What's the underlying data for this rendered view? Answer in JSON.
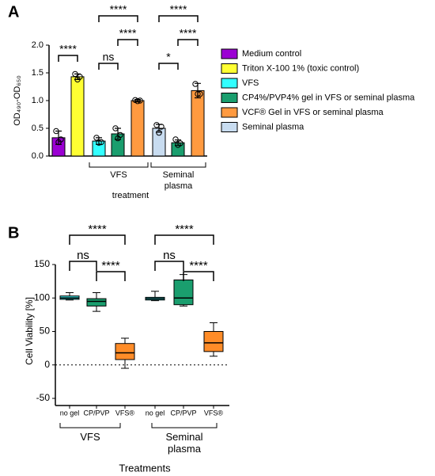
{
  "chart_data": [
    {
      "type": "bar",
      "panel": "A",
      "y_label": "OD₄₉₀-OD₆₅₀",
      "x_label": "treatment",
      "categories": [
        null,
        null,
        "VFS",
        "Seminal plasma"
      ],
      "ylim": [
        0,
        2
      ],
      "yticks": [
        {
          "value": 0,
          "label": "0.0"
        },
        {
          "value": 0.5,
          "label": "0.5"
        },
        {
          "value": 1,
          "label": "1.0"
        },
        {
          "value": 1.5,
          "label": "1.5"
        },
        {
          "value": 2,
          "label": "2.0"
        }
      ],
      "series": [
        {
          "name": "Medium control",
          "color": "#9b00d3",
          "values": [
            0.33,
            null,
            null,
            null
          ],
          "errors": [
            0.12,
            null,
            null,
            null
          ],
          "points": [
            [
              0.45,
              0.3,
              0.25
            ],
            null,
            null,
            null
          ]
        },
        {
          "name": "Triton X-100 1% (toxic control)",
          "color": "#ffff33",
          "values": [
            null,
            1.43,
            null,
            null
          ],
          "errors": [
            null,
            0.05,
            null,
            null
          ],
          "points": [
            null,
            [
              1.48,
              1.43,
              1.38
            ],
            null,
            null
          ]
        },
        {
          "name": "VFS",
          "color": "#33ffff",
          "values": [
            null,
            null,
            0.27,
            null
          ],
          "errors": [
            null,
            null,
            0.06,
            null
          ],
          "points": [
            null,
            null,
            [
              0.33,
              0.25,
              0.24
            ],
            null
          ]
        },
        {
          "name": "CP4%/PVP4% gel in VFS or seminal plasma",
          "color": "#1a9e6e",
          "values": [
            null,
            null,
            0.4,
            0.24
          ],
          "errors": [
            null,
            null,
            0.1,
            0.05
          ],
          "points": [
            null,
            null,
            [
              0.5,
              0.38,
              0.32
            ],
            [
              0.3,
              0.23,
              0.2
            ]
          ]
        },
        {
          "name": "VCF® Gel in VFS or seminal plasma",
          "color": "#ff9a40",
          "values": [
            null,
            null,
            1.0,
            1.18
          ],
          "errors": [
            null,
            null,
            0.02,
            0.13
          ],
          "points": [
            null,
            null,
            [
              1.01,
              1.0,
              0.99
            ],
            [
              1.3,
              1.12,
              1.12
            ]
          ]
        },
        {
          "name": "Seminal plasma",
          "color": "#c8dcf0",
          "values": [
            null,
            null,
            null,
            0.5
          ],
          "errors": [
            null,
            null,
            null,
            0.07
          ],
          "points": [
            null,
            null,
            null,
            [
              0.56,
              0.53,
              0.42
            ]
          ]
        }
      ],
      "annotations": [
        "****",
        "****",
        "ns",
        "****",
        "****",
        "*",
        "****"
      ]
    },
    {
      "type": "box",
      "panel": "B",
      "y_label": "Cell Viability [%]",
      "x_label": "Treatments",
      "categories": [
        "no gel",
        "CP/PVP",
        "VFS®",
        "no gel",
        "CP/PVP",
        "VFS®"
      ],
      "groups": [
        "VFS",
        "Seminal plasma"
      ],
      "ylim": [
        -50,
        150
      ],
      "yticks": [
        -50,
        0,
        50,
        100,
        150
      ],
      "colors": [
        "#33dddd",
        "#1a9e6e",
        "#ff8c28",
        "#33dddd",
        "#1a9e6e",
        "#ff8c28"
      ],
      "min": [
        97,
        80,
        -5,
        96,
        88,
        13
      ],
      "q1": [
        98,
        88,
        8,
        97,
        90,
        20
      ],
      "median": [
        100,
        95,
        18,
        99,
        100,
        33
      ],
      "q3": [
        103,
        99,
        32,
        101,
        127,
        50
      ],
      "max": [
        108,
        108,
        40,
        110,
        135,
        63
      ],
      "annotations": [
        "****",
        "ns",
        "****",
        "****",
        "ns",
        "****"
      ]
    }
  ]
}
